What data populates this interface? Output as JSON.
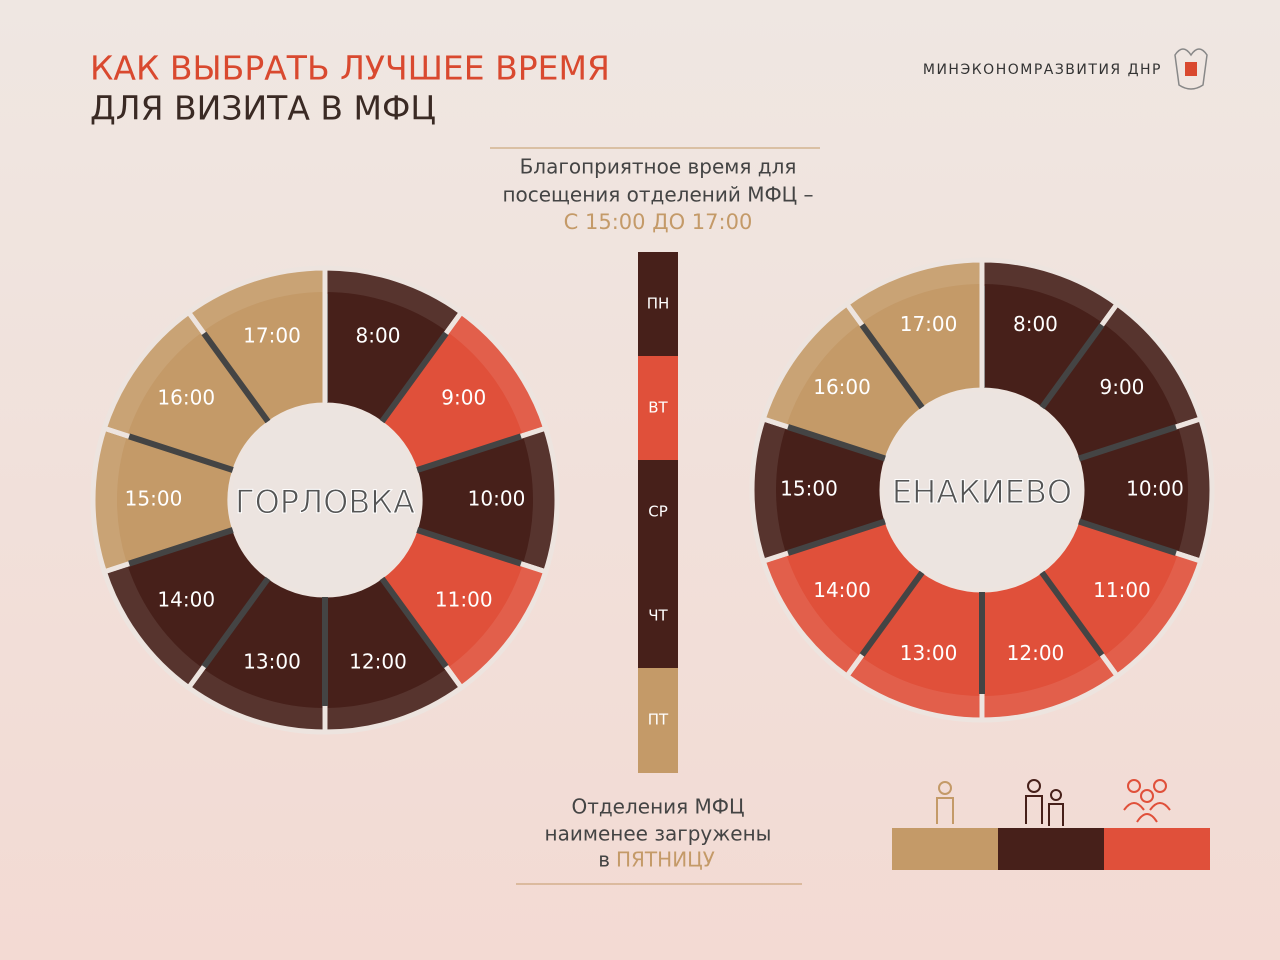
{
  "header": {
    "title_line1": "КАК ВЫБРАТЬ ЛУЧШЕЕ ВРЕМЯ",
    "title_line2": "ДЛЯ ВИЗИТА В МФЦ",
    "ministry": "МИНЭКОНОМРАЗВИТИЯ ДНР"
  },
  "best_time": {
    "line1": "Благоприятное время для",
    "line2": "посещения отделений МФЦ –",
    "highlight": "С 15:00 ДО 17:00"
  },
  "wheels": [
    {
      "city": "ГОРЛОВКА",
      "hours": [
        {
          "label": "8:00",
          "color": "#47201a"
        },
        {
          "label": "9:00",
          "color": "#e0503a"
        },
        {
          "label": "10:00",
          "color": "#47201a"
        },
        {
          "label": "11:00",
          "color": "#e0503a"
        },
        {
          "label": "12:00",
          "color": "#47201a"
        },
        {
          "label": "13:00",
          "color": "#47201a"
        },
        {
          "label": "14:00",
          "color": "#47201a"
        },
        {
          "label": "15:00",
          "color": "#c49a68"
        },
        {
          "label": "16:00",
          "color": "#c49a68"
        },
        {
          "label": "17:00",
          "color": "#c49a68"
        }
      ]
    },
    {
      "city": "ЕНАКИЕВО",
      "hours": [
        {
          "label": "8:00",
          "color": "#47201a"
        },
        {
          "label": "9:00",
          "color": "#47201a"
        },
        {
          "label": "10:00",
          "color": "#47201a"
        },
        {
          "label": "11:00",
          "color": "#e0503a"
        },
        {
          "label": "12:00",
          "color": "#e0503a"
        },
        {
          "label": "13:00",
          "color": "#e0503a"
        },
        {
          "label": "14:00",
          "color": "#e0503a"
        },
        {
          "label": "15:00",
          "color": "#47201a"
        },
        {
          "label": "16:00",
          "color": "#c49a68"
        },
        {
          "label": "17:00",
          "color": "#c49a68"
        }
      ]
    }
  ],
  "days": [
    {
      "label": "ПН",
      "color": "#47201a"
    },
    {
      "label": "ВТ",
      "color": "#e0503a"
    },
    {
      "label": "СР",
      "color": "#47201a"
    },
    {
      "label": "ЧТ",
      "color": "#47201a"
    },
    {
      "label": "ПТ",
      "color": "#c49a68"
    }
  ],
  "footer": {
    "line1": "Отделения МФЦ",
    "line2": "наименее загружены",
    "prefix": "в",
    "highlight": "ПЯТНИЦУ"
  },
  "legend": [
    {
      "color": "#c49a68"
    },
    {
      "color": "#47201a"
    },
    {
      "color": "#e0503a"
    }
  ]
}
